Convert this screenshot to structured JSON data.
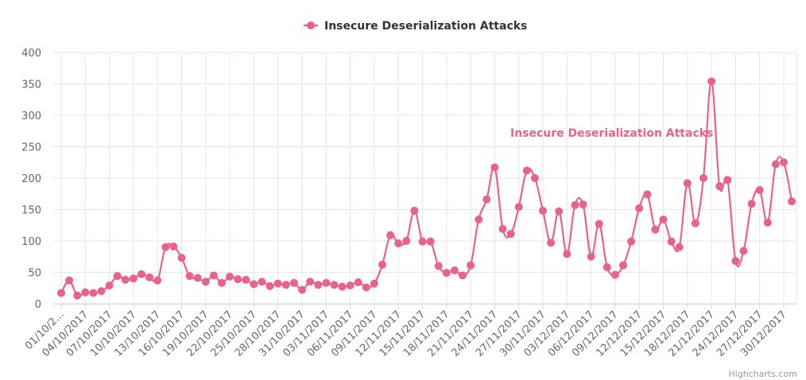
{
  "chart_data": {
    "type": "line",
    "title": "",
    "xlabel": "",
    "ylabel": "",
    "ylim": [
      0,
      400
    ],
    "y_ticks": [
      0,
      50,
      100,
      150,
      200,
      250,
      300,
      350,
      400
    ],
    "grid": true,
    "legend_position": "top-center",
    "series": [
      {
        "name": "Insecure Deserialization Attacks",
        "color": "#e8628a",
        "values": [
          17,
          37,
          13,
          18,
          17,
          20,
          29,
          44,
          38,
          40,
          47,
          42,
          37,
          90,
          91,
          73,
          44,
          41,
          35,
          45,
          33,
          43,
          39,
          38,
          31,
          35,
          28,
          32,
          30,
          33,
          22,
          35,
          30,
          33,
          30,
          27,
          29,
          34,
          26,
          32,
          62,
          109,
          96,
          100,
          148,
          99,
          99,
          60,
          49,
          53,
          45,
          61,
          134,
          166,
          217,
          119,
          111,
          154,
          212,
          200,
          148,
          97,
          147,
          79,
          157,
          158,
          75,
          127,
          58,
          46,
          61,
          99,
          152,
          174,
          118,
          134,
          99,
          90,
          192,
          128,
          200,
          354,
          187,
          197,
          68,
          84,
          159,
          181,
          129,
          222,
          225,
          163
        ]
      }
    ],
    "x_tick_labels": [
      "01/10/2...",
      "04/10/2017",
      "07/10/2017",
      "10/10/2017",
      "13/10/2017",
      "16/10/2017",
      "19/10/2017",
      "22/10/2017",
      "25/10/2017",
      "28/10/2017",
      "31/10/2017",
      "03/11/2017",
      "06/11/2017",
      "09/11/2017",
      "12/11/2017",
      "15/11/2017",
      "18/11/2017",
      "21/11/2017",
      "24/11/2017",
      "27/11/2017",
      "30/11/2017",
      "03/12/2017",
      "06/12/2017",
      "09/12/2017",
      "12/12/2017",
      "15/12/2017",
      "18/12/2017",
      "21/12/2017",
      "24/12/2017",
      "27/12/2017",
      "30/12/2017"
    ],
    "annotation": "Insecure Deserialization Attacks",
    "credits": "Highcharts.com"
  }
}
